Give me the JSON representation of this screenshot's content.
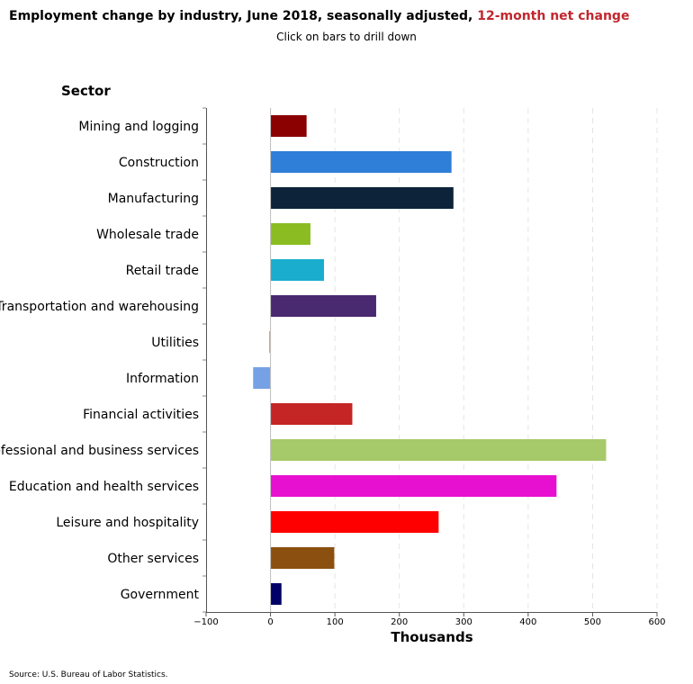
{
  "header": {
    "title_main": "Employment change by industry, June 2018, seasonally adjusted,",
    "title_accent": "12-month net change",
    "subtitle": "Click on bars to drill down"
  },
  "footer": {
    "source": "Source: U.S. Bureau of Labor Statistics."
  },
  "colors": {
    "title_accent": "#c1272d",
    "grid": "#e5e5e5"
  },
  "chart_data": {
    "type": "bar",
    "orientation": "horizontal",
    "ylabel": "Sector",
    "xlabel": "Thousands",
    "xlim": [
      -100,
      600
    ],
    "xticks": [
      -100,
      0,
      100,
      200,
      300,
      400,
      500,
      600
    ],
    "grid": "vertical dashed",
    "categories": [
      "Mining and logging",
      "Construction",
      "Manufacturing",
      "Wholesale trade",
      "Retail trade",
      "Transportation and warehousing",
      "Utilities",
      "Information",
      "Financial activities",
      "Professional and business services",
      "Education and health services",
      "Leisure and hospitality",
      "Other services",
      "Government"
    ],
    "values": [
      56,
      281,
      284,
      62,
      83,
      164,
      -2,
      -27,
      127,
      521,
      444,
      261,
      99,
      17
    ],
    "bar_colors": [
      "#8b0000",
      "#2f7ed8",
      "#0d233a",
      "#8bbc21",
      "#1aadce",
      "#492970",
      "#f28f43",
      "#77a1e5",
      "#c42525",
      "#a6c96a",
      "#e810d0",
      "#ff0000",
      "#8b5010",
      "#000066"
    ]
  }
}
